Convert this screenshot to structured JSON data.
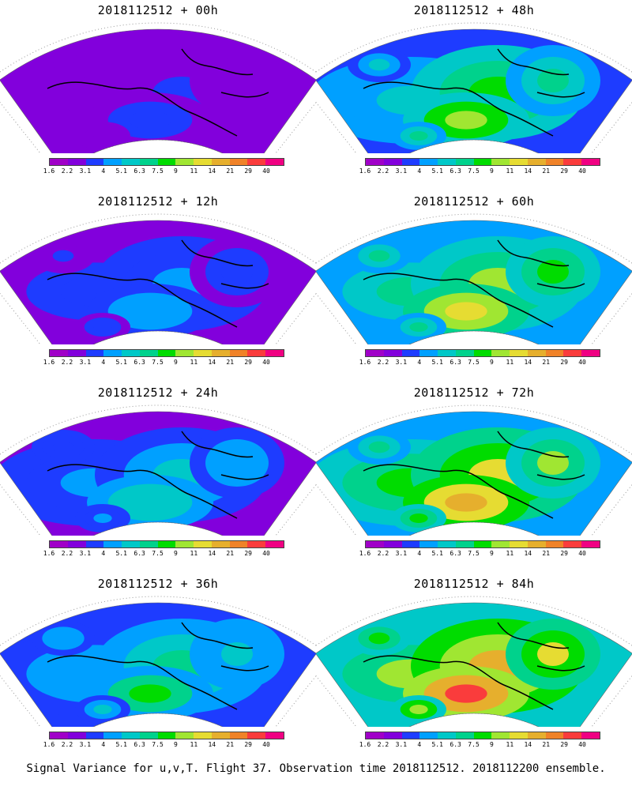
{
  "panels": [
    {
      "title": "2018112512 + 00h",
      "intensity": 0.15
    },
    {
      "title": "2018112512 + 48h",
      "intensity": 0.55
    },
    {
      "title": "2018112512 + 12h",
      "intensity": 0.25
    },
    {
      "title": "2018112512 + 60h",
      "intensity": 0.65
    },
    {
      "title": "2018112512 + 24h",
      "intensity": 0.35
    },
    {
      "title": "2018112512 + 72h",
      "intensity": 0.75
    },
    {
      "title": "2018112512 + 36h",
      "intensity": 0.45
    },
    {
      "title": "2018112512 + 84h",
      "intensity": 0.85
    }
  ],
  "colorbar": {
    "labels": [
      "1.6",
      "2.2",
      "3.1",
      "4",
      "5.1",
      "6.3",
      "7.5",
      "9",
      "11",
      "14",
      "21",
      "29",
      "40"
    ],
    "colors": [
      "#a000c8",
      "#8200dc",
      "#1e3cff",
      "#00a0ff",
      "#00c8c8",
      "#00d28c",
      "#00dc00",
      "#a0e632",
      "#e6dc32",
      "#e6af2d",
      "#f08228",
      "#fa3c3c",
      "#f00082"
    ]
  },
  "footer": "Signal Variance for u,v,T. Flight 37. Observation time 2018112512. 2018112200 ensemble."
}
